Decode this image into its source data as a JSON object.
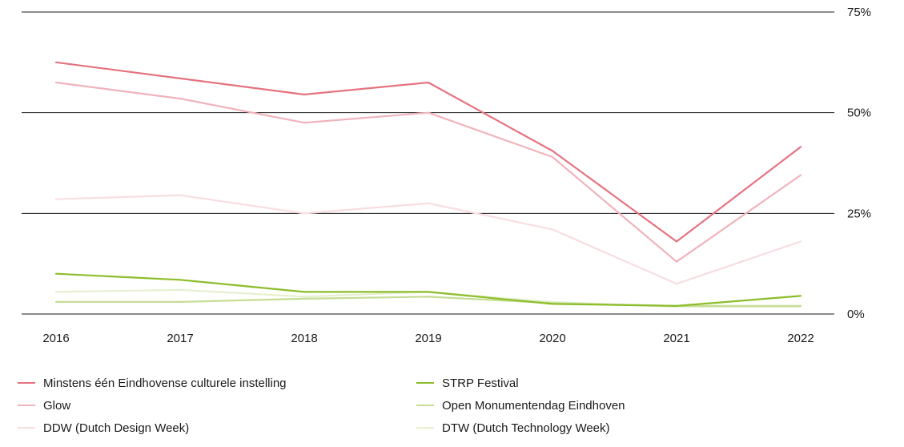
{
  "chart_data": {
    "type": "line",
    "title": "",
    "xlabel": "",
    "ylabel": "",
    "x": [
      "2016",
      "2017",
      "2018",
      "2019",
      "2020",
      "2021",
      "2022"
    ],
    "ylim": [
      0,
      75
    ],
    "yticks": [
      0,
      25,
      50,
      75
    ],
    "ytick_labels": [
      "0%",
      "25%",
      "50%",
      "75%"
    ],
    "y_axis_side": "right",
    "grid": "horizontal",
    "legend_position": "bottom",
    "series": [
      {
        "name": "Minstens één Eindhovense culturele instelling",
        "color": "#e5737f",
        "values": [
          62.5,
          58.5,
          54.5,
          57.5,
          40.5,
          18,
          41.5
        ]
      },
      {
        "name": "Glow",
        "color": "#f0b3bb",
        "values": [
          57.5,
          53.5,
          47.5,
          50,
          39,
          13,
          34.5
        ]
      },
      {
        "name": "DDW (Dutch Design Week)",
        "color": "#f8dde1",
        "values": [
          28.5,
          29.5,
          25,
          27.5,
          21,
          7.5,
          18
        ]
      },
      {
        "name": "STRP Festival",
        "color": "#8cbd2a",
        "values": [
          10,
          8.5,
          5.5,
          5.5,
          2.5,
          2,
          4.5
        ]
      },
      {
        "name": "Open Monumentendag Eindhoven",
        "color": "#c5dd94",
        "values": [
          3,
          3,
          3.8,
          4.3,
          2.7,
          2,
          2
        ]
      },
      {
        "name": "DTW (Dutch Technology Week)",
        "color": "#e6f0d0",
        "values": [
          5.5,
          6,
          4.3,
          5.5,
          3,
          1.8,
          1.8
        ]
      }
    ]
  }
}
